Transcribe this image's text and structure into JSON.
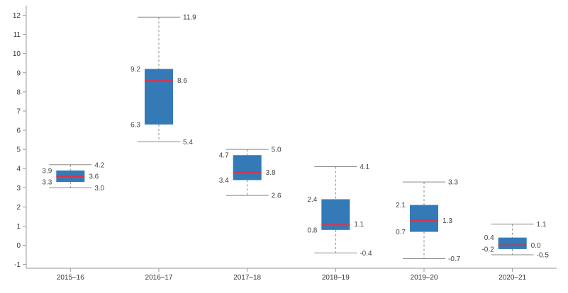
{
  "chart_data": {
    "type": "box",
    "categories": [
      "2015–16",
      "2016–17",
      "2017–18",
      "2018–19",
      "2019–20",
      "2020–21"
    ],
    "boxes": [
      {
        "min": 3.0,
        "q1": 3.3,
        "median": 3.6,
        "q3": 3.9,
        "max": 4.2,
        "labels": {
          "min": "3.0",
          "q1": "3.3",
          "median": "3.6",
          "q3": "3.9",
          "max": "4.2"
        }
      },
      {
        "min": 5.4,
        "q1": 6.3,
        "median": 8.6,
        "q3": 9.2,
        "max": 11.9,
        "labels": {
          "min": "5.4",
          "q1": "6.3",
          "median": "8.6",
          "q3": "9.2",
          "max": "11.9"
        }
      },
      {
        "min": 2.6,
        "q1": 3.4,
        "median": 3.8,
        "q3": 4.7,
        "max": 5.0,
        "labels": {
          "min": "2.6",
          "q1": "3.4",
          "median": "3.8",
          "q3": "4.7",
          "max": "5.0"
        }
      },
      {
        "min": -0.4,
        "q1": 0.8,
        "median": 1.1,
        "q3": 2.4,
        "max": 4.1,
        "labels": {
          "min": "-0.4",
          "q1": "0.8",
          "median": "1.1",
          "q3": "2.4",
          "max": "4.1"
        }
      },
      {
        "min": -0.7,
        "q1": 0.7,
        "median": 1.3,
        "q3": 2.1,
        "max": 3.3,
        "labels": {
          "min": "-0.7",
          "q1": "0.7",
          "median": "1.3",
          "q3": "2.1",
          "max": "3.3"
        }
      },
      {
        "min": -0.5,
        "q1": -0.2,
        "median": 0.0,
        "q3": 0.4,
        "max": 1.1,
        "labels": {
          "min": "-0.5",
          "q1": "-0.2",
          "median": "0.0",
          "q3": "0.4",
          "max": "1.1"
        }
      }
    ],
    "ylim": [
      -1.2,
      12.5
    ],
    "yticks": [
      -1,
      0,
      1,
      2,
      3,
      4,
      5,
      6,
      7,
      8,
      9,
      10,
      11,
      12
    ],
    "title": "",
    "xlabel": "",
    "ylabel": "",
    "grid": false,
    "legend": "none",
    "colors": {
      "box": "#337ab7",
      "median": "#d9344a",
      "whisker": "#888888",
      "axis": "#999999",
      "text": "#333333"
    }
  }
}
